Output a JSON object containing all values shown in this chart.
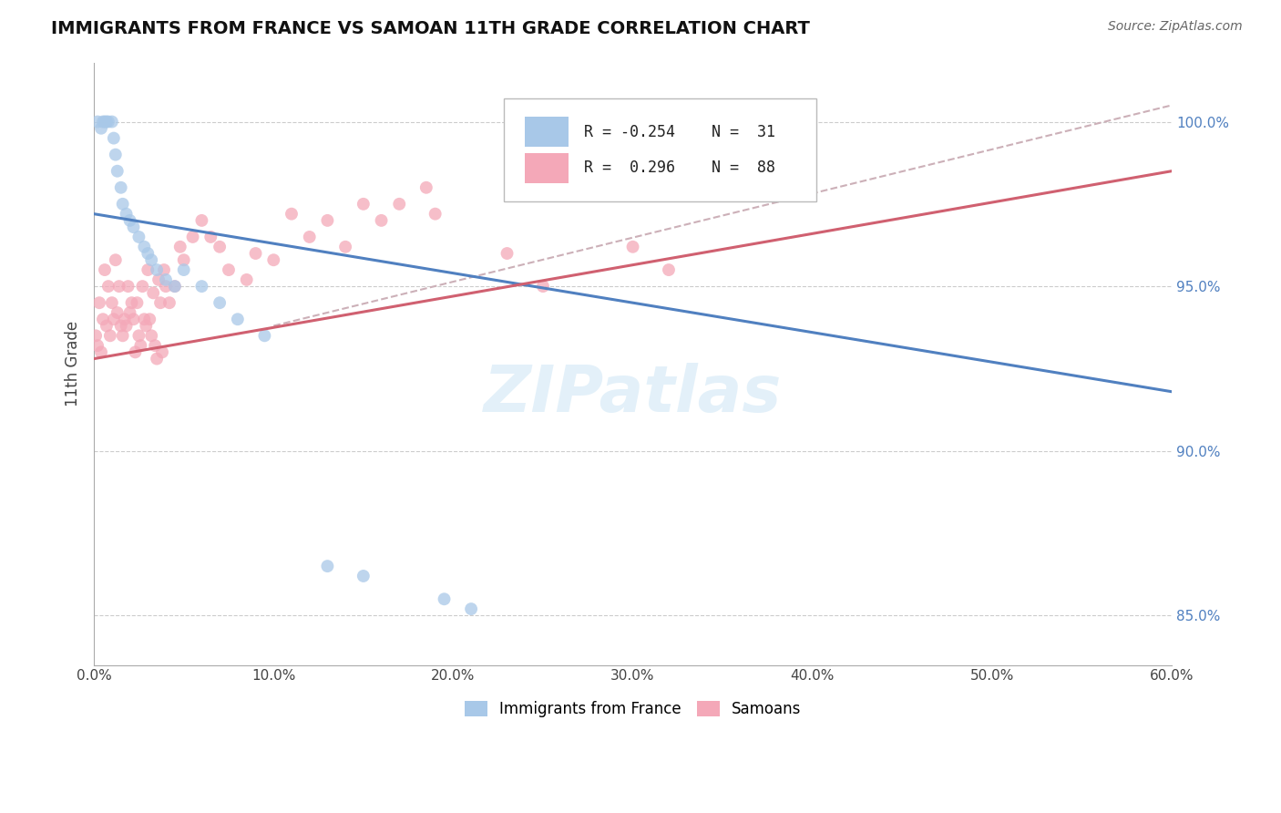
{
  "title": "IMMIGRANTS FROM FRANCE VS SAMOAN 11TH GRADE CORRELATION CHART",
  "source": "Source: ZipAtlas.com",
  "xlim": [
    0.0,
    60.0
  ],
  "ylim": [
    83.5,
    101.8
  ],
  "ylabel": "11th Grade",
  "blue_R": -0.254,
  "blue_N": 31,
  "pink_R": 0.296,
  "pink_N": 88,
  "blue_color": "#a8c8e8",
  "pink_color": "#f4a8b8",
  "blue_line_color": "#5080c0",
  "pink_line_color": "#d06070",
  "dot_size": 100,
  "blue_line_x0": 0.0,
  "blue_line_y0": 97.2,
  "blue_line_x1": 60.0,
  "blue_line_y1": 91.8,
  "pink_line_x0": 0.0,
  "pink_line_y0": 92.8,
  "pink_line_x1": 60.0,
  "pink_line_y1": 98.5,
  "pink_dash_x0": 10.0,
  "pink_dash_y0": 93.8,
  "pink_dash_x1": 60.0,
  "pink_dash_y1": 100.5,
  "blue_scatter_x": [
    0.2,
    0.4,
    0.5,
    0.6,
    0.7,
    0.8,
    1.0,
    1.1,
    1.2,
    1.3,
    1.5,
    1.6,
    1.8,
    2.0,
    2.2,
    2.5,
    2.8,
    3.0,
    3.2,
    3.5,
    4.0,
    4.5,
    5.0,
    6.0,
    7.0,
    8.0,
    9.5,
    13.0,
    15.0,
    19.5,
    21.0
  ],
  "blue_scatter_y": [
    100.0,
    99.8,
    100.0,
    100.0,
    100.0,
    100.0,
    100.0,
    99.5,
    99.0,
    98.5,
    98.0,
    97.5,
    97.2,
    97.0,
    96.8,
    96.5,
    96.2,
    96.0,
    95.8,
    95.5,
    95.2,
    95.0,
    95.5,
    95.0,
    94.5,
    94.0,
    93.5,
    86.5,
    86.2,
    85.5,
    85.2
  ],
  "pink_scatter_x": [
    0.1,
    0.2,
    0.3,
    0.4,
    0.5,
    0.6,
    0.7,
    0.8,
    0.9,
    1.0,
    1.1,
    1.2,
    1.3,
    1.4,
    1.5,
    1.6,
    1.7,
    1.8,
    1.9,
    2.0,
    2.1,
    2.2,
    2.3,
    2.4,
    2.5,
    2.6,
    2.7,
    2.8,
    2.9,
    3.0,
    3.1,
    3.2,
    3.3,
    3.4,
    3.5,
    3.6,
    3.7,
    3.8,
    3.9,
    4.0,
    4.2,
    4.5,
    4.8,
    5.0,
    5.5,
    6.0,
    6.5,
    7.0,
    7.5,
    8.5,
    9.0,
    10.0,
    11.0,
    12.0,
    13.0,
    14.0,
    15.0,
    16.0,
    17.0,
    18.5,
    19.0,
    23.0,
    25.0,
    30.0,
    32.0
  ],
  "pink_scatter_y": [
    93.5,
    93.2,
    94.5,
    93.0,
    94.0,
    95.5,
    93.8,
    95.0,
    93.5,
    94.5,
    94.0,
    95.8,
    94.2,
    95.0,
    93.8,
    93.5,
    94.0,
    93.8,
    95.0,
    94.2,
    94.5,
    94.0,
    93.0,
    94.5,
    93.5,
    93.2,
    95.0,
    94.0,
    93.8,
    95.5,
    94.0,
    93.5,
    94.8,
    93.2,
    92.8,
    95.2,
    94.5,
    93.0,
    95.5,
    95.0,
    94.5,
    95.0,
    96.2,
    95.8,
    96.5,
    97.0,
    96.5,
    96.2,
    95.5,
    95.2,
    96.0,
    95.8,
    97.2,
    96.5,
    97.0,
    96.2,
    97.5,
    97.0,
    97.5,
    98.0,
    97.2,
    96.0,
    95.0,
    96.2,
    95.5
  ]
}
